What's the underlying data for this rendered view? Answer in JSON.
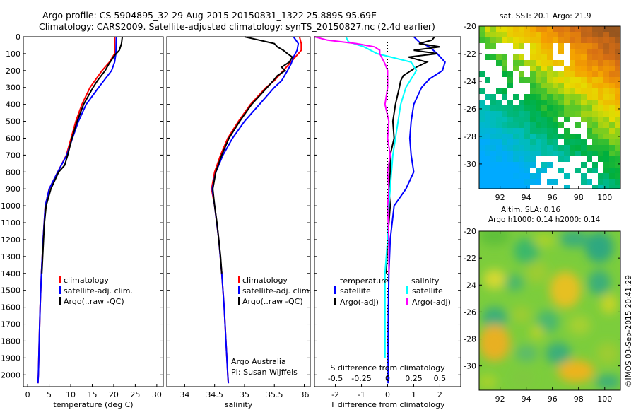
{
  "header": {
    "line1": "Argo profile: CS 5904895_32 29-Aug-2015 20150831_1322 25.889S 95.69E",
    "line2": "Climatology: CARS2009. Satellite-adjusted climatology: synTS_20150827.nc (2.4d earlier)"
  },
  "colors": {
    "climatology": "#ff0000",
    "satellite": "#0000ff",
    "argo": "#000000",
    "sat_salinity": "#00ffff",
    "argo_salinity_diff": "#ff00ff"
  },
  "chart_data": [
    {
      "type": "line",
      "panel": "temperature",
      "xlabel": "temperature (deg C)",
      "xlim": [
        -1,
        31.5
      ],
      "ylim": [
        2070,
        0
      ],
      "yticks": [
        0,
        100,
        200,
        300,
        400,
        500,
        600,
        700,
        800,
        900,
        1000,
        1100,
        1200,
        1300,
        1400,
        1500,
        1600,
        1700,
        1800,
        1900,
        2000
      ],
      "xticks": [
        0,
        5,
        10,
        15,
        20,
        25,
        30
      ],
      "legend": [
        "climatology",
        "satellite-adj. clim.",
        "Argo(..raw -QC)"
      ],
      "series": [
        {
          "name": "climatology",
          "color": "#ff0000",
          "depth": [
            0,
            100,
            150,
            200,
            300,
            400,
            500,
            600,
            700,
            800,
            900,
            1000,
            1200,
            1400,
            1600,
            1800,
            2000,
            2050
          ],
          "values": [
            20.2,
            20.2,
            19.0,
            17.3,
            14.5,
            12.6,
            11.2,
            10.1,
            9.0,
            7.0,
            5.0,
            4.1,
            3.6,
            3.2,
            2.9,
            2.7,
            2.5,
            2.4
          ]
        },
        {
          "name": "satellite-adj. clim.",
          "color": "#0000ff",
          "depth": [
            0,
            100,
            150,
            200,
            300,
            400,
            500,
            600,
            700,
            800,
            900,
            1000,
            1200,
            1400,
            1600,
            1800,
            2000,
            2050
          ],
          "values": [
            20.6,
            20.5,
            20.2,
            19.5,
            16.5,
            13.6,
            11.8,
            10.4,
            9.1,
            7.0,
            5.0,
            4.1,
            3.6,
            3.2,
            2.9,
            2.7,
            2.5,
            2.4
          ]
        },
        {
          "name": "Argo(..raw -QC)",
          "color": "#000000",
          "depth": [
            0,
            40,
            80,
            110,
            160,
            200,
            260,
            300,
            400,
            500,
            600,
            700,
            760,
            800,
            900,
            1000,
            1100,
            1200,
            1300,
            1400
          ],
          "values": [
            22.0,
            21.8,
            21.3,
            20.2,
            18.9,
            18.0,
            16.2,
            15.2,
            13.0,
            11.5,
            10.3,
            9.3,
            8.6,
            7.2,
            5.4,
            4.3,
            3.9,
            3.7,
            3.5,
            3.3
          ]
        }
      ],
      "annotations": []
    },
    {
      "type": "line",
      "panel": "salinity",
      "xlabel": "salinity",
      "xlim": [
        33.7,
        36.1
      ],
      "ylim": [
        2070,
        0
      ],
      "xticks": [
        34,
        34.5,
        35,
        35.5,
        36
      ],
      "legend": [
        "climatology",
        "satellite-adj. clim.",
        "Argo(..raw -QC)"
      ],
      "series": [
        {
          "name": "climatology",
          "color": "#ff0000",
          "depth": [
            0,
            40,
            80,
            120,
            160,
            200,
            260,
            300,
            400,
            500,
            600,
            700,
            800,
            900,
            1000,
            1200,
            1400,
            1600,
            1800,
            2000,
            2050
          ],
          "values": [
            35.92,
            35.95,
            35.95,
            35.85,
            35.75,
            35.65,
            35.5,
            35.36,
            35.1,
            34.9,
            34.72,
            34.6,
            34.5,
            34.45,
            34.5,
            34.57,
            34.62,
            34.66,
            34.69,
            34.72,
            34.73
          ]
        },
        {
          "name": "satellite-adj. clim.",
          "color": "#0000ff",
          "depth": [
            0,
            40,
            80,
            120,
            160,
            200,
            260,
            300,
            400,
            500,
            600,
            700,
            800,
            900,
            1000,
            1200,
            1400,
            1600,
            1800,
            2000,
            2050
          ],
          "values": [
            35.82,
            35.9,
            35.88,
            35.82,
            35.78,
            35.72,
            35.62,
            35.5,
            35.25,
            35.0,
            34.8,
            34.64,
            34.52,
            34.46,
            34.5,
            34.57,
            34.62,
            34.66,
            34.69,
            34.72,
            34.73
          ]
        },
        {
          "name": "Argo(..raw -QC)",
          "color": "#000000",
          "depth": [
            0,
            20,
            40,
            60,
            80,
            100,
            120,
            150,
            180,
            200,
            230,
            260,
            300,
            400,
            500,
            600,
            700,
            800,
            900,
            1000,
            1100,
            1200,
            1300,
            1400
          ],
          "values": [
            35.0,
            35.25,
            35.5,
            35.55,
            35.65,
            35.72,
            35.8,
            35.75,
            35.62,
            35.68,
            35.55,
            35.48,
            35.38,
            35.12,
            34.92,
            34.74,
            34.62,
            34.52,
            34.47,
            34.5,
            34.54,
            34.57,
            34.6,
            34.62
          ]
        }
      ],
      "annotations": [
        "Argo Australia",
        "PI: Susan Wijffels"
      ]
    },
    {
      "type": "line",
      "panel": "difference",
      "xlabel": "T difference from climatology",
      "xlabel_top": "S difference from climatology",
      "xlim": [
        -2.8,
        2.8
      ],
      "ylim": [
        2070,
        0
      ],
      "xticks": [
        -2,
        -1,
        0,
        1,
        2
      ],
      "xticks_S": [
        "-0.5",
        "-0.25",
        "0",
        "0.25",
        "0.5"
      ],
      "legend_headers": [
        "temperature",
        "salinity"
      ],
      "legend": [
        "satellite",
        "Argo(-adj)",
        "satellite",
        "Argo(-adj)"
      ],
      "series": [
        {
          "name": "satellite",
          "color": "#0000ff",
          "depth": [
            0,
            30,
            60,
            100,
            150,
            200,
            250,
            300,
            400,
            500,
            600,
            700,
            800,
            900,
            1000,
            1200,
            1400,
            1600,
            1800,
            2000,
            2050
          ],
          "values": [
            1.0,
            1.2,
            1.6,
            1.9,
            2.2,
            2.1,
            1.6,
            1.3,
            1.0,
            0.9,
            0.85,
            0.9,
            1.0,
            0.7,
            0.25,
            0.1,
            0.05,
            0.03,
            0.02,
            0.02,
            0.02
          ]
        },
        {
          "name": "Argo(-adj)",
          "color": "#000000",
          "depth": [
            0,
            20,
            40,
            60,
            80,
            100,
            120,
            150,
            180,
            200,
            230,
            260,
            300,
            400,
            500,
            600,
            700,
            800,
            900,
            1000,
            1200,
            1400
          ],
          "values": [
            1.8,
            1.7,
            1.2,
            2.0,
            1.0,
            1.9,
            0.8,
            1.5,
            1.1,
            0.9,
            0.6,
            0.5,
            0.45,
            0.3,
            0.2,
            0.25,
            0.1,
            0.1,
            0.05,
            0.1,
            0.0,
            -0.05
          ]
        },
        {
          "name": "satellite",
          "color": "#00ffff",
          "depth": [
            0,
            30,
            60,
            100,
            150,
            200,
            250,
            300,
            400,
            500,
            600,
            700,
            800,
            900,
            1000,
            1200,
            1400,
            1600,
            1800,
            1900
          ],
          "values": [
            -1.6,
            -1.5,
            -0.9,
            -0.4,
            0.9,
            1.1,
            0.9,
            0.7,
            0.5,
            0.4,
            0.3,
            0.2,
            0.15,
            0.1,
            0.05,
            0.0,
            -0.1,
            -0.1,
            -0.1,
            -0.1
          ]
        },
        {
          "name": "Argo(-adj)",
          "color": "#ff00ff",
          "depth": [
            0,
            20,
            40,
            60,
            80,
            100,
            130,
            160,
            200,
            300,
            400,
            500,
            600,
            700,
            800,
            900,
            1000,
            1200,
            1400
          ],
          "values": [
            -2.8,
            -2.3,
            -1.2,
            -0.5,
            -0.3,
            -0.3,
            -0.2,
            -0.1,
            0.0,
            0.0,
            -0.1,
            0.05,
            0.0,
            0.1,
            0.0,
            0.05,
            0.0,
            0.05,
            0.05
          ]
        }
      ],
      "annotations": []
    },
    {
      "type": "heatmap",
      "panel": "sst-map",
      "title": "sat. SST: 20.1  Argo: 21.9",
      "xticks": [
        92,
        94,
        96,
        98,
        100
      ],
      "yticks": [
        -20,
        -22,
        -24,
        -26,
        -28,
        -30
      ],
      "xlim": [
        90.4,
        101.2
      ],
      "ylim": [
        -31.8,
        -20
      ]
    },
    {
      "type": "heatmap",
      "panel": "sla-map",
      "title_line1": "Altim. SLA: 0.16",
      "title_line2": "Argo h1000: 0.14 h2000: 0.14",
      "xticks": [
        92,
        94,
        96,
        98,
        100
      ],
      "yticks": [
        -20,
        -22,
        -24,
        -26,
        -28,
        -30
      ],
      "xlim": [
        90.4,
        101.2
      ],
      "ylim": [
        -31.8,
        -20
      ]
    }
  ],
  "footer": {
    "stamp": "©IMOS 03-Sep-2015 20:41:29"
  }
}
